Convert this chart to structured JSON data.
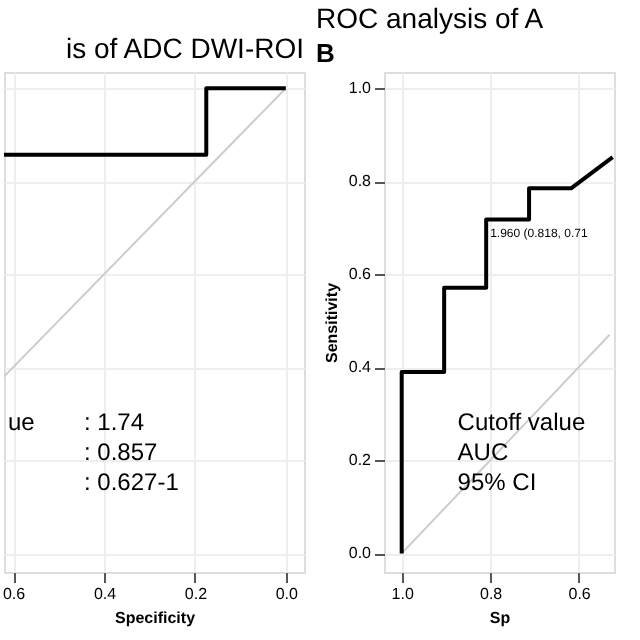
{
  "chart_data": [
    {
      "type": "line",
      "title": "is of ADC DWI-ROI",
      "xlabel": "Specificity",
      "xlim": [
        0.62,
        -0.04
      ],
      "ylim": [
        -0.04,
        1.035
      ],
      "xticks": [
        0.6,
        0.4,
        0.2,
        {
          "value": 0,
          "label": "0.0"
        }
      ],
      "tick_labels": "x",
      "grid": true,
      "series": [
        {
          "color": "#cccccc",
          "x": [
            0.62,
            0.0
          ],
          "values": [
            0.38,
            1.0
          ]
        },
        {
          "color": "#000000",
          "x": [
            0.62,
            0.175,
            0.175,
            0.0
          ],
          "values": [
            0.857,
            0.857,
            1.0,
            1.0
          ]
        }
      ],
      "annotations": [
        "ue",
        ": 1.74",
        ": 0.857",
        ": 0.627-1"
      ]
    },
    {
      "type": "line",
      "title": "ROC analysis of A",
      "xlabel": "Sp",
      "ylabel": "Sensitivity",
      "xlim": [
        1.04,
        0.52
      ],
      "ylim": [
        -0.04,
        1.035
      ],
      "xticks": [
        {
          "value": 1,
          "label": "1.0"
        },
        0.8,
        0.6
      ],
      "yticks": [
        {
          "value": 0,
          "label": "0.0"
        },
        0.2,
        0.4,
        0.6,
        0.8,
        {
          "value": 1,
          "label": "1.0"
        }
      ],
      "grid": true,
      "series": [
        {
          "color": "#cccccc",
          "x": [
            1.0,
            0.53
          ],
          "values": [
            0.0,
            0.47
          ]
        },
        {
          "color": "#000000",
          "x": [
            1.0,
            1.0,
            0.904,
            0.904,
            0.809,
            0.809,
            0.712,
            0.712,
            0.617,
            0.523
          ],
          "values": [
            0.0,
            0.39,
            0.39,
            0.571,
            0.571,
            0.718,
            0.718,
            0.785,
            0.785,
            0.852
          ]
        }
      ],
      "annotations": [
        "B",
        {
          "text": "1.960 (0.818, 0.71",
          "x": 0.809,
          "y": 0.714
        },
        "Cutoff value",
        "AUC",
        "95% CI"
      ]
    }
  ]
}
